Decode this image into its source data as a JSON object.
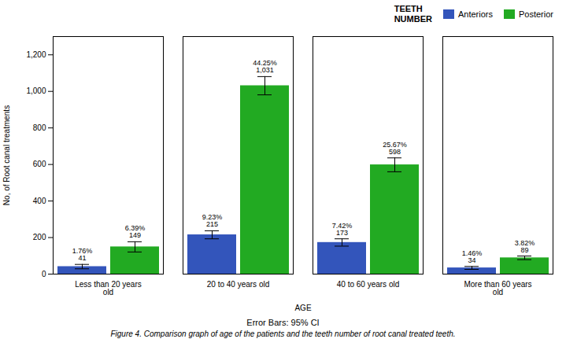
{
  "chart_data": {
    "type": "bar",
    "categories": [
      "Less than 20 years\nold",
      "20 to 40 years old",
      "40 to 60 years old",
      "More than 60 years\nold"
    ],
    "series": [
      {
        "name": "Anteriors",
        "color": "#3355BB",
        "values": [
          41,
          215,
          173,
          34
        ],
        "errors": [
          12,
          22,
          20,
          8
        ],
        "value_labels": [
          "1.76%\n41",
          "9.23%\n215",
          "7.42%\n173",
          "1.46%\n34"
        ]
      },
      {
        "name": "Posterior",
        "color": "#22AA22",
        "values": [
          149,
          1031,
          598,
          89
        ],
        "errors": [
          28,
          50,
          38,
          10
        ],
        "value_labels": [
          "6.39%\n149",
          "44.25%\n1,031",
          "25.67%\n598",
          "3.82%\n89"
        ]
      }
    ],
    "xlabel": "AGE",
    "ylabel": "No, of Root canal treatments",
    "ylim": [
      0,
      1300
    ],
    "yticks": [
      0,
      200,
      400,
      600,
      800,
      {
        "value": 1000,
        "label": "1,000"
      },
      {
        "value": 1200,
        "label": "1,200"
      }
    ],
    "legend": "upper right",
    "legend_title": "TEETH\nNUMBER",
    "data_labels": true,
    "annotations": [
      "Error Bars: 95% CI"
    ],
    "caption": "Figure 4. Comparison graph of age of the patients and the teeth number of root canal treated teeth."
  }
}
